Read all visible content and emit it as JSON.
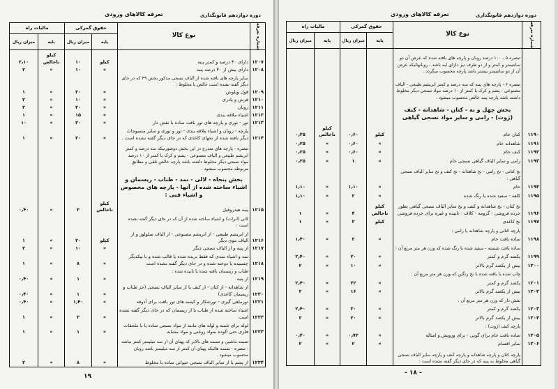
{
  "running_head": "دوره دوازدهم قانونگذاری",
  "headers": {
    "tariff_no": "شماره تعرفه",
    "goods": "نوع کالا",
    "customs": "حقوق گمرکی",
    "road_tax": "مالیات راه",
    "base": "پایه",
    "amount": "میزان ریال"
  },
  "left_page": {
    "title": "تعرفه کالاهای ورودی",
    "page_number": "۱۹",
    "rows": [
      {
        "no": "۱۲۰۷",
        "desc": "دارای ۴۰ درصد و کمتر پنبه",
        "cb": "کیلو",
        "cv": "۱۰",
        "tb": "کیلو ناخالص",
        "tv": "۲٫۱۰"
      },
      {
        "no": "۱۲۰۸",
        "desc": "دارای بیش از ۴۰ درصد پنبه",
        "cb": "»",
        "cv": "۱۰",
        "tb": "»",
        "tv": "۲"
      },
      {
        "kind": "note",
        "desc": "سایر پارچه های بافته شده از الیاف نسجی مذکور بخش ۴۹ که در جای دیگر گفته نشده است خالص یا مخلوط :"
      },
      {
        "no": "۱۲۰۹",
        "desc": "قول ویلوش",
        "cb": "»",
        "cv": "۲۰",
        "tb": "»",
        "tv": "۱"
      },
      {
        "no": "۱۲۱۰",
        "desc": "فرش و پادری",
        "cb": "»",
        "cv": "۱۰",
        "tb": "»",
        "tv": "۲"
      },
      {
        "no": "۱۲۱۱",
        "desc": "روبان",
        "cb": "»",
        "cv": "۲۰",
        "tb": "»",
        "tv": "۲"
      },
      {
        "no": "۱۲۱۲",
        "desc": "اشیاء ملافه بندی",
        "cb": "»",
        "cv": "۱۵",
        "tb": "»",
        "tv": "۱"
      },
      {
        "no": "۱۲۱۳",
        "desc": "تور - توری و پارچه های تور بافت ساده یا نقش دار",
        "cb": "»",
        "cv": "۲۰",
        "tb": "»",
        "tv": "۱۰"
      },
      {
        "no": "۱۲۱۴",
        "desc": "پارچه - روبان و اشیاء ملافه بندی - تور و توری و سایر منسوجات دیگر بافته شده از نخهای کاغذی که در جای دیگر گفته نشده است .",
        "cb": "»",
        "cv": "۲۰",
        "tb": "»",
        "tv": "۱"
      },
      {
        "kind": "note",
        "desc": "تبصره - پارچه های مندرج در این بخش دوصورتیکه سه درصد و کمتر ابریشم طبیعی و الیاف مصنوعی - پشم و کرک یا کمتر از ۱۰ درصد مواد نسجی دیگر مخلوط داشته باشد پارچه خالص تلقی و مطابق مربوطه محسوب میشود ."
      },
      {
        "kind": "section",
        "desc": "بخش پنجاه - لالی - نمد - طناب - ریسمان و اشیاء ساخته شده از آنها - پارچه های مخصوص و اشیاء فنی :"
      },
      {
        "no": "۱۲۱۵",
        "desc": "پنبه هیدروفیل",
        "cb": "کیلو ناخالص",
        "cv": "۲",
        "tb": "»",
        "tv": "۰٫۴۰"
      },
      {
        "kind": "note",
        "desc": "لائی (ابرات) و اشیاء ساخته شده از آن که در جای دیگر گفته نشده است :"
      },
      {
        "no": "۱۲۱۶",
        "desc": "از ابریشم طبیعی - از ابریشم مصنوعی - از الیاف سلولوز و از الیاف موی دیگر",
        "cb": "کیلو",
        "cv": "۲۰",
        "tb": "»",
        "tv": "۱"
      },
      {
        "no": "۱۲۱۷",
        "desc": "از پنبه و از الیاف نسجی دیگر",
        "cb": "»",
        "cv": "۱۰",
        "tb": "»",
        "tv": "۲"
      },
      {
        "no": "۱۲۱۸",
        "desc": "نمد و اشیاء نمدی که فقط بریده شده یا قالب شده و یا بیکدیگر چسبیده یا دوخته شده و در جای دیگر گفته نشده است",
        "cb": "»",
        "cv": "۸",
        "tb": "»",
        "tv": "۱"
      },
      {
        "kind": "note",
        "desc": "طناب و ریسمان بافته شده یا تابیده شده :"
      },
      {
        "no": "۱۲۱۹",
        "desc": "از پنبه",
        "cb": "»",
        "cv": "۱",
        "tb": "»",
        "tv": "۰٫۴۰"
      },
      {
        "no": "۱۲۲۰",
        "desc": "از شاهدانه - از کتان - از کنف یا از سایر الیاف نسجی (جز طناب و ریسمان کاغذی)",
        "cb": "»",
        "cv": "۱",
        "tb": "»",
        "tv": "۰٫۴۰"
      },
      {
        "no": "۱۲۲۱",
        "desc": "تورماهی گیری - تورشکار و کیسه های تور بافت برای آذوقه",
        "cb": "»",
        "cv": "۱٫۴۰",
        "tb": "»",
        "tv": "۰٫۴۰"
      },
      {
        "no": "۱۲۲۲",
        "desc": "اشیاء ساخته شده از طناب یا از ریسمان که در جای دیگر گفته نشده است",
        "cb": "»",
        "cv": "۲",
        "tb": "»",
        "tv": "۱"
      },
      {
        "no": "۱۲۲۳",
        "desc": "لوله برای تلمبه و لوله های مانند از مواد نسجی ساده یا با ملحقات فلزی حتی آلوده بمواد روغنی و مواد مشابه",
        "cb": "»",
        "cv": "۱",
        "tb": "»",
        "tv": "۱"
      },
      {
        "kind": "note",
        "desc": "تسمه ماشین و تسمه های بالابر که پهنای آن از سه میلیمتر کمتر نباشد : تبصره - تسمه هائیکه پهنای آن کمتر از سه میلیمتر باشد روبان محسوب میشود ."
      },
      {
        "no": "۱۲۲۴",
        "desc": "از پشم یا از سایر الیاف نسجی حیوانی ساده یا مخلوط",
        "cb": "»",
        "cv": "۸",
        "tb": "»",
        "tv": "۲"
      }
    ]
  },
  "right_page": {
    "title": "تعرفه کالاهای ورودی",
    "page_number": "- ۱۸ -",
    "rows": [
      {
        "kind": "note",
        "desc": "تبصره ۵ - ۱۰۰ درصد روبان و پارچه های بافته شده که عرض آن دو سانتیمتر و کمتر و از دو طرف نیز دارای لبه باشد - روبانهائیکه عرض آن از دو سانتیمتر بیشتر باشد پارچه محسوب میگردد ."
      },
      {
        "kind": "note",
        "desc": "تبصره ۶ - پارچه های پنبه که سه درصد و کمتر ابریشم طبیعی - الیاف مصنوعی - پشم و کرک یا کمتر از ۱۰ درصد مواد نسجی دیگر مخلوط داشته باشد پارچه پنبه خالص محسوب میشود ."
      },
      {
        "kind": "section",
        "desc": "بخش چهل و نه - کتان - شاهدانه - کنف (ژوت) - رامی و سایر مواد نسجی گیاهی"
      },
      {
        "no": "۱۱۹۰",
        "desc": "کتان خام",
        "cb": "کیلو",
        "cv": "۰٫۶۰",
        "tb": "کیلو ناخالص",
        "tv": "۰٫۲۵"
      },
      {
        "no": "۱۱۹۱",
        "desc": "شاهدانه خام",
        "cb": "»",
        "cv": "۰٫۶۰",
        "tb": "»",
        "tv": "۰٫۲۵"
      },
      {
        "no": "۱۱۹۲",
        "desc": "کنف خام",
        "cb": "»",
        "cv": "۰٫۶۰",
        "tb": "»",
        "tv": "۰٫۲۵"
      },
      {
        "no": "۱۱۹۳",
        "desc": "رامی و سایر الیاف گیاهی نسجی خام",
        "cb": "»",
        "cv": "۱",
        "tb": "»",
        "tv": "۰٫۲۵"
      },
      {
        "kind": "note",
        "desc": "نخ کتانی - نخ رامی - نخ شاهدانه - نخ کنف و نخ سایر الیاف نسجی گیاهی :"
      },
      {
        "no": "۱۱۹۴",
        "desc": "خام",
        "cb": "»",
        "cv": "۱٫۱۰",
        "tb": "»",
        "tv": "۱٫۱۰"
      },
      {
        "no": "۱۱۹۵",
        "desc": "کلفه - سفید شده یا رنگ شده",
        "cb": "»",
        "cv": "۲",
        "tb": "»",
        "tv": "۱٫۱۰"
      },
      {
        "no": "۱۱۹۶",
        "desc": "نخ کتان - نخ شاهدانه و کنف و نخ سایر الیاف نسجی گیاهی بطور خرده فروشی - گرومه - کلاف - تابیده و غیره برای خرده فروشی",
        "cb": "کیلو ناخالص",
        "cv": "۴",
        "tb": "»",
        "tv": "۱"
      },
      {
        "no": "۱۱۹۷",
        "desc": "نخ کاغذی",
        "cb": "کیلو",
        "cv": "۲",
        "tb": "»",
        "tv": "۱"
      },
      {
        "kind": "note",
        "desc": "پارچه کتانی و پارچه شاهدانه یا رامی :"
      },
      {
        "no": "۱۱۹۸",
        "desc": "ساده بافت خام",
        "cb": "»",
        "cv": "۲",
        "tb": "»",
        "tv": "۱٫۴۰"
      },
      {
        "kind": "note",
        "desc": "ساده بافت شسته - سفید شده یا رنگ شده که وزن هر متر مربع آن :"
      },
      {
        "no": "۱۱۹۹",
        "desc": "یکصد گرم و کمتر",
        "cb": "»",
        "cv": "۲۰",
        "tb": "»",
        "tv": "۲٫۴۰"
      },
      {
        "no": "۱۲۰۰",
        "desc": "بیش از یکصد گرم بالاتر",
        "cb": "»",
        "cv": "۱۰",
        "tb": "»",
        "tv": "۲"
      },
      {
        "kind": "note",
        "desc": "چاپ شده یا بافته شده با نخ رنگین که وزن هر متر مربع آن :"
      },
      {
        "no": "۱۲۰۱",
        "desc": "یکصد گرم و کمتر",
        "cb": "»",
        "cv": "۲۲",
        "tb": "»",
        "tv": "۲٫۴۰"
      },
      {
        "no": "۱۲۰۲",
        "desc": "بیش از یکصد گرم بالاتر",
        "cb": "»",
        "cv": "۱۶",
        "tb": "»",
        "tv": "۲"
      },
      {
        "kind": "note",
        "desc": "نقش دار که وزن هر متر مربع آن :"
      },
      {
        "no": "۱۲۰۳",
        "desc": "یکصد گرم و کمتر",
        "cb": "»",
        "cv": "۳۰",
        "tb": "»",
        "tv": "۲٫۴۰"
      },
      {
        "no": "۱۲۰۴",
        "desc": "بیش از یکصد گرم بالاتر",
        "cb": "»",
        "cv": "۲۰",
        "tb": "»",
        "tv": "۲"
      },
      {
        "kind": "note",
        "desc": "پارچه کنف (ژوت) :"
      },
      {
        "no": "۱۲۰۵",
        "desc": "ساده بافت خام برای گونی - برای ورویش و امثاله",
        "cb": "»",
        "cv": "۰٫۷۲",
        "tb": "»",
        "tv": "۰٫۴۰"
      },
      {
        "no": "۱۲۰۶",
        "desc": "سایر اقسام",
        "cb": "»",
        "cv": "۲",
        "tb": "»",
        "tv": "۲"
      },
      {
        "kind": "note",
        "desc": "پارچه کتان و پارچه شاهدانه و پارچه کنف و پارچه سایر الیاف نسجی گیاهی مخلوط به پنبه که در جای دیگر گفته نشده است :"
      }
    ]
  }
}
